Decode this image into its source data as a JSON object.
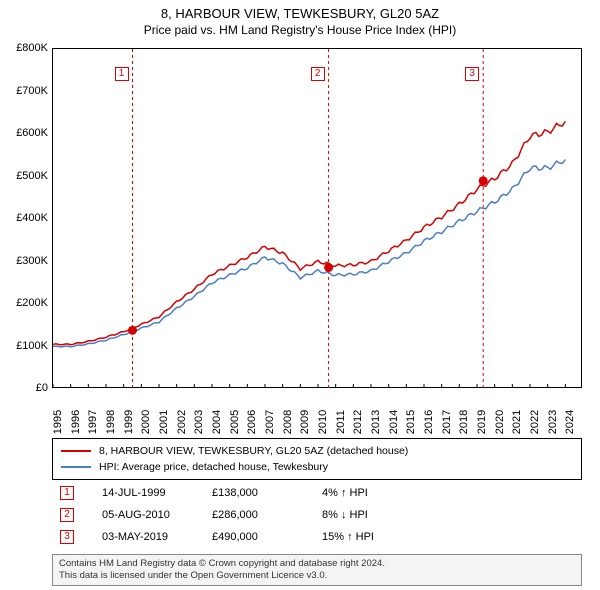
{
  "title": "8, HARBOUR VIEW, TEWKESBURY, GL20 5AZ",
  "subtitle": "Price paid vs. HM Land Registry's House Price Index (HPI)",
  "chart": {
    "type": "line",
    "background_color": "#ffffff",
    "border_color": "#000000",
    "xlim": [
      1995,
      2025
    ],
    "ylim": [
      0,
      800000
    ],
    "y_ticks": [
      0,
      100000,
      200000,
      300000,
      400000,
      500000,
      600000,
      700000,
      800000
    ],
    "y_tick_labels": [
      "£0",
      "£100K",
      "£200K",
      "£300K",
      "£400K",
      "£500K",
      "£600K",
      "£700K",
      "£800K"
    ],
    "x_ticks": [
      1995,
      1996,
      1997,
      1998,
      1999,
      2000,
      2001,
      2002,
      2003,
      2004,
      2005,
      2006,
      2007,
      2008,
      2009,
      2010,
      2011,
      2012,
      2013,
      2014,
      2015,
      2016,
      2017,
      2018,
      2019,
      2020,
      2021,
      2022,
      2023,
      2024
    ],
    "x_tick_labels": [
      "1995",
      "1996",
      "1997",
      "1998",
      "1999",
      "2000",
      "2001",
      "2002",
      "2003",
      "2004",
      "2005",
      "2006",
      "2007",
      "2008",
      "2009",
      "2010",
      "2011",
      "2012",
      "2013",
      "2014",
      "2015",
      "2016",
      "2017",
      "2018",
      "2019",
      "2020",
      "2021",
      "2022",
      "2023",
      "2024"
    ],
    "tick_font_size": 11,
    "series": [
      {
        "name": "property",
        "color": "#d40000",
        "line_width": 1.5,
        "data": [
          [
            1995,
            105000
          ],
          [
            1996,
            105000
          ],
          [
            1997,
            112000
          ],
          [
            1998,
            122000
          ],
          [
            1999,
            135000
          ],
          [
            2000,
            152000
          ],
          [
            2001,
            170000
          ],
          [
            2002,
            205000
          ],
          [
            2003,
            235000
          ],
          [
            2004,
            270000
          ],
          [
            2005,
            290000
          ],
          [
            2006,
            310000
          ],
          [
            2007,
            335000
          ],
          [
            2008,
            320000
          ],
          [
            2009,
            283000
          ],
          [
            2010,
            300000
          ],
          [
            2011,
            290000
          ],
          [
            2012,
            292000
          ],
          [
            2013,
            300000
          ],
          [
            2014,
            325000
          ],
          [
            2015,
            350000
          ],
          [
            2016,
            380000
          ],
          [
            2017,
            405000
          ],
          [
            2018,
            435000
          ],
          [
            2019,
            470000
          ],
          [
            2020,
            495000
          ],
          [
            2021,
            530000
          ],
          [
            2022,
            595000
          ],
          [
            2023,
            605000
          ],
          [
            2024,
            630000
          ]
        ]
      },
      {
        "name": "hpi",
        "color": "#4a7fc4",
        "line_width": 1.5,
        "data": [
          [
            1995,
            100000
          ],
          [
            1996,
            100000
          ],
          [
            1997,
            106000
          ],
          [
            1998,
            115000
          ],
          [
            1999,
            128000
          ],
          [
            2000,
            143000
          ],
          [
            2001,
            158000
          ],
          [
            2002,
            190000
          ],
          [
            2003,
            218000
          ],
          [
            2004,
            250000
          ],
          [
            2005,
            268000
          ],
          [
            2006,
            285000
          ],
          [
            2007,
            310000
          ],
          [
            2008,
            295000
          ],
          [
            2009,
            262000
          ],
          [
            2010,
            278000
          ],
          [
            2011,
            268000
          ],
          [
            2012,
            270000
          ],
          [
            2013,
            278000
          ],
          [
            2014,
            300000
          ],
          [
            2015,
            320000
          ],
          [
            2016,
            348000
          ],
          [
            2017,
            370000
          ],
          [
            2018,
            395000
          ],
          [
            2019,
            418000
          ],
          [
            2020,
            440000
          ],
          [
            2021,
            470000
          ],
          [
            2022,
            520000
          ],
          [
            2023,
            520000
          ],
          [
            2024,
            540000
          ]
        ]
      }
    ],
    "event_markers": [
      {
        "label": "1",
        "year": 1999.5,
        "price": 138000
      },
      {
        "label": "2",
        "year": 2010.6,
        "price": 286000
      },
      {
        "label": "3",
        "year": 2019.35,
        "price": 490000
      }
    ],
    "marker_color": "#d40000",
    "marker_box_border": "#d40000",
    "dashed_line_color": "#d40000"
  },
  "legend": {
    "items": [
      {
        "color": "#d40000",
        "text": "8, HARBOUR VIEW, TEWKESBURY, GL20 5AZ (detached house)"
      },
      {
        "color": "#4a7fc4",
        "text": "HPI: Average price, detached house, Tewkesbury"
      }
    ]
  },
  "events": [
    {
      "label": "1",
      "date": "14-JUL-1999",
      "price": "£138,000",
      "pct": "4% ↑ HPI"
    },
    {
      "label": "2",
      "date": "05-AUG-2010",
      "price": "£286,000",
      "pct": "8% ↓ HPI"
    },
    {
      "label": "3",
      "date": "03-MAY-2019",
      "price": "£490,000",
      "pct": "15% ↑ HPI"
    }
  ],
  "footer_line1": "Contains HM Land Registry data © Crown copyright and database right 2024.",
  "footer_line2": "This data is licensed under the Open Government Licence v3.0."
}
